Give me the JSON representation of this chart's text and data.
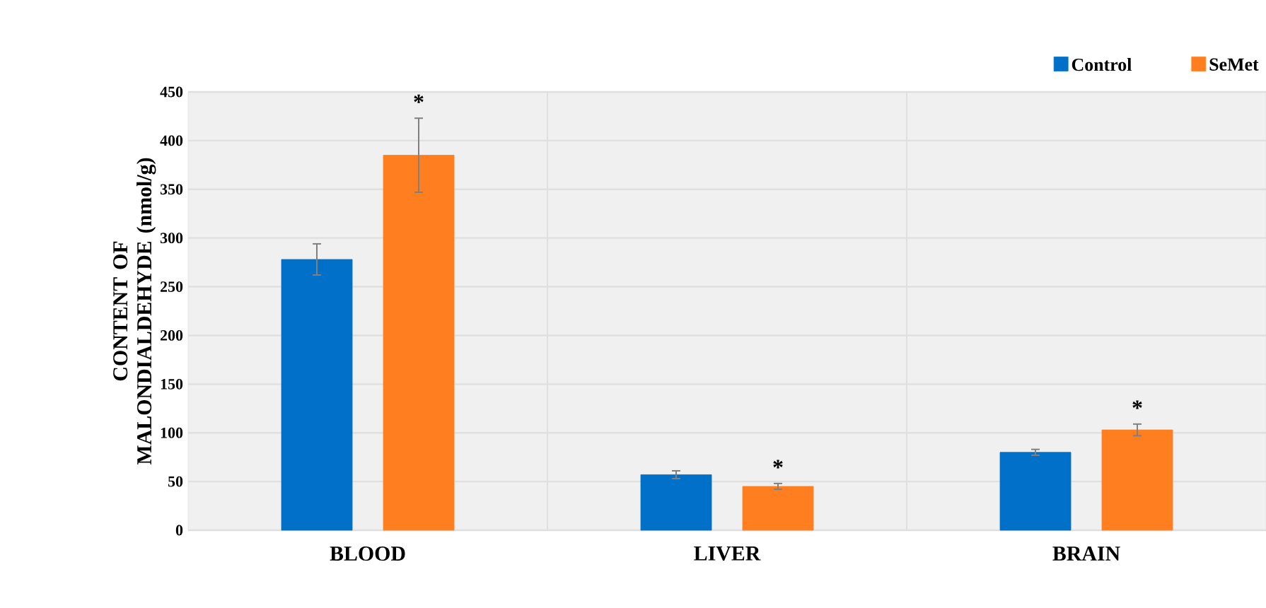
{
  "chart_data": {
    "type": "bar",
    "ylabel": "CONTENT OF MALONDIALDEHYDE (nmol/g)",
    "categories": [
      "BLOOD",
      "LIVER",
      "BRAIN"
    ],
    "series": [
      {
        "name": "Control",
        "color": "#0070c8",
        "values": [
          278,
          57,
          80
        ],
        "errors": [
          16,
          4,
          3
        ]
      },
      {
        "name": "SeMet",
        "color": "#ff7f20",
        "values": [
          385,
          45,
          103
        ],
        "errors": [
          38,
          3,
          6
        ]
      }
    ],
    "ylim": [
      0,
      450
    ],
    "yticks": [
      0,
      50,
      100,
      150,
      200,
      250,
      300,
      350,
      400,
      450
    ],
    "grid": true,
    "legend": "top right",
    "annotations": [
      "*",
      "*",
      "*"
    ]
  }
}
